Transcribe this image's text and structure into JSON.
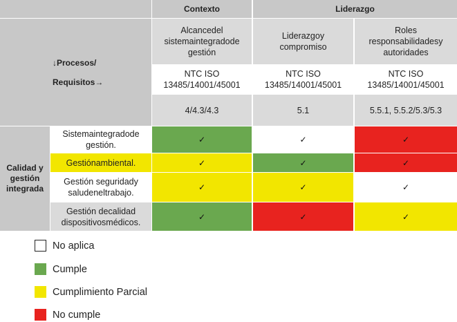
{
  "header": {
    "context": "Contexto",
    "leadership": "Liderazgo"
  },
  "columns": [
    {
      "title": "Alcancedel sistemaintegradode gestión",
      "standard": "NTC ISO 13485/14001/45001",
      "clause": "4/4.3/4.3"
    },
    {
      "title": "Liderazgoy compromiso",
      "standard": "NTC ISO 13485/14001/45001",
      "clause": "5.1"
    },
    {
      "title": "Roles responsabilidadesy autoridades",
      "standard": "NTC ISO 13485/14001/45001",
      "clause": "5.5.1, 5.5.2/5.3/5.3"
    }
  ],
  "corner": {
    "processes": "↓Procesos/",
    "requirements": "Requisitos→"
  },
  "group_label": "Calidad y gestión integrada",
  "rows": [
    {
      "label": "Sistemaintegradode gestión.",
      "cells": [
        {
          "status": "green",
          "mark": "✓"
        },
        {
          "status": "white",
          "mark": "✓"
        },
        {
          "status": "red",
          "mark": "✓"
        }
      ]
    },
    {
      "label": "Gestiónambiental.",
      "cells": [
        {
          "status": "yellow",
          "mark": "✓"
        },
        {
          "status": "green",
          "mark": "✓"
        },
        {
          "status": "red",
          "mark": "✓"
        }
      ]
    },
    {
      "label": "Gestión seguridady saludeneltrabajo.",
      "cells": [
        {
          "status": "yellow",
          "mark": "✓"
        },
        {
          "status": "yellow",
          "mark": "✓"
        },
        {
          "status": "white",
          "mark": "✓"
        }
      ]
    },
    {
      "label": "Gestión decalidad dispositivosmédicos.",
      "cells": [
        {
          "status": "green",
          "mark": "✓"
        },
        {
          "status": "red",
          "mark": "✓"
        },
        {
          "status": "yellow",
          "mark": "✓"
        }
      ]
    }
  ],
  "legend": [
    {
      "label": "No aplica",
      "color": "#ffffff"
    },
    {
      "label": "Cumple",
      "color": "#6aa84f"
    },
    {
      "label": "Cumplimiento Parcial",
      "color": "#f2e600"
    },
    {
      "label": "No cumple",
      "color": "#e8231f"
    }
  ]
}
